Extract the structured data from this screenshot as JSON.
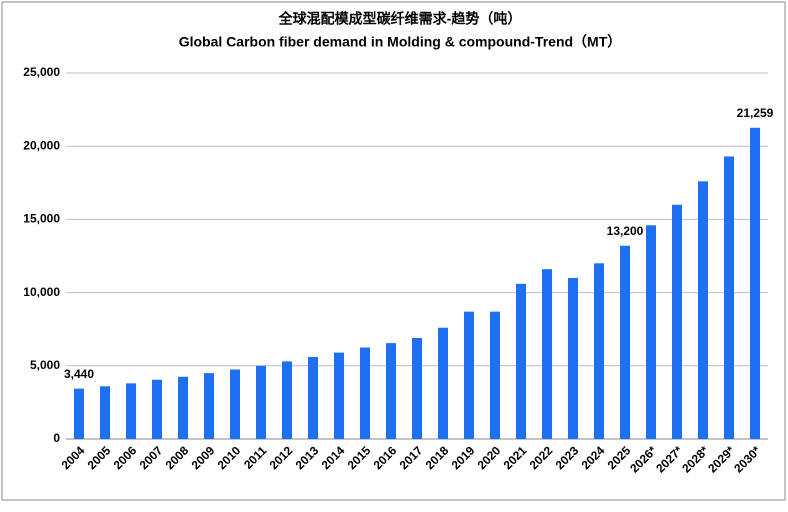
{
  "chart_data": {
    "type": "bar",
    "title": "全球混配模成型碳纤维需求-趋势（吨）",
    "subtitle": "Global Carbon fiber demand in Molding & compound-Trend（MT）",
    "categories": [
      "2004",
      "2005",
      "2006",
      "2007",
      "2008",
      "2009",
      "2010",
      "2011",
      "2012",
      "2013",
      "2014",
      "2015",
      "2016",
      "2017",
      "2018",
      "2019",
      "2020",
      "2021",
      "2022",
      "2023",
      "2024",
      "2025",
      "2026*",
      "2027*",
      "2028*",
      "2029*",
      "2030*"
    ],
    "values": [
      3440,
      3600,
      3800,
      4050,
      4250,
      4500,
      4750,
      5000,
      5300,
      5600,
      5900,
      6250,
      6550,
      6900,
      7600,
      8700,
      8700,
      10600,
      11600,
      11000,
      12000,
      13200,
      14600,
      16000,
      17600,
      19300,
      21259
    ],
    "value_labels": [
      "3,440",
      null,
      null,
      null,
      null,
      null,
      null,
      null,
      null,
      null,
      null,
      null,
      null,
      null,
      null,
      null,
      null,
      null,
      null,
      null,
      null,
      "13,200",
      null,
      null,
      null,
      null,
      "21,259"
    ],
    "color": "#1f6ff2",
    "ylim": [
      0,
      25000
    ],
    "yticks": [
      0,
      {
        "value": 5000,
        "label": "5,000"
      },
      {
        "value": 10000,
        "label": "10,000"
      },
      {
        "value": 15000,
        "label": "15,000"
      },
      {
        "value": 20000,
        "label": "20,000"
      },
      {
        "value": 25000,
        "label": "25,000"
      }
    ],
    "grid": true
  }
}
